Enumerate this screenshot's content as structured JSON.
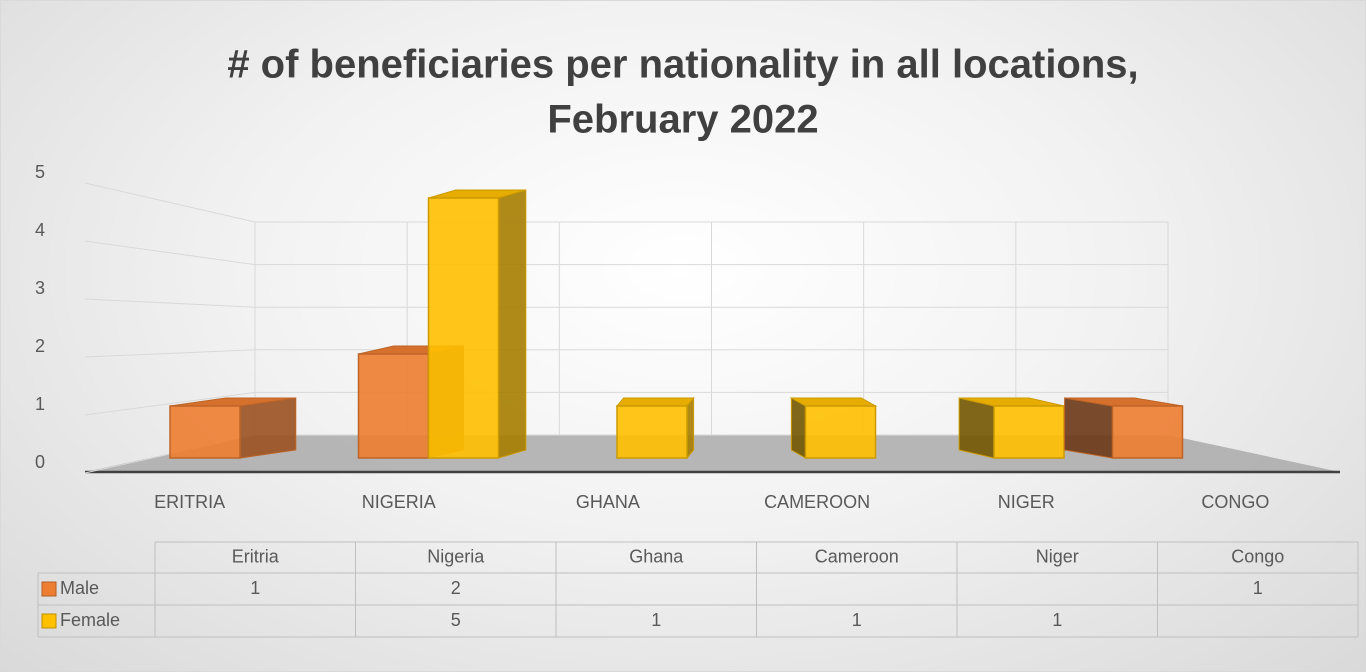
{
  "chart_data": {
    "type": "bar3d",
    "title": [
      "# of beneficiaries per nationality in  all locations,",
      "February 2022"
    ],
    "categories": [
      "Eritria",
      "Nigeria",
      "Ghana",
      "Cameroon",
      "Niger",
      "Congo"
    ],
    "series": [
      {
        "name": "Male",
        "color": "#ed7d31",
        "values": [
          1,
          2,
          null,
          null,
          null,
          1
        ]
      },
      {
        "name": "Female",
        "color": "#ffc000",
        "values": [
          null,
          5,
          1,
          1,
          1,
          null
        ]
      }
    ],
    "ylim": [
      0,
      5
    ],
    "yticks": [
      0,
      1,
      2,
      3,
      4,
      5
    ],
    "grid": true,
    "data_table": true
  }
}
